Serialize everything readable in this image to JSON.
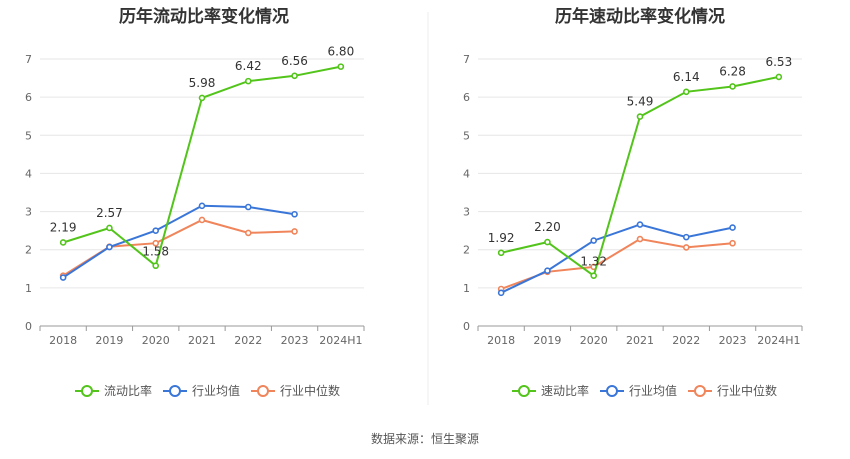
{
  "source_label": "数据来源：恒生聚源",
  "chart_data": [
    {
      "type": "line",
      "title": "历年流动比率变化情况",
      "categories": [
        "2018",
        "2019",
        "2020",
        "2021",
        "2022",
        "2023",
        "2024H1"
      ],
      "ylim": [
        0,
        7
      ],
      "yticks": [
        0,
        1,
        2,
        3,
        4,
        5,
        6,
        7
      ],
      "grid": true,
      "legend_position": "bottom",
      "series": [
        {
          "name": "流动比率",
          "color": "#52c41a",
          "values": [
            2.19,
            2.57,
            1.58,
            5.98,
            6.42,
            6.56,
            6.8
          ],
          "labels": [
            "2.19",
            "2.57",
            "1.58",
            "5.98",
            "6.42",
            "6.56",
            "6.80"
          ]
        },
        {
          "name": "行业均值",
          "color": "#3a76d8",
          "values": [
            1.27,
            2.07,
            2.5,
            3.15,
            3.12,
            2.93,
            null
          ]
        },
        {
          "name": "行业中位数",
          "color": "#f0845a",
          "values": [
            1.32,
            2.08,
            2.17,
            2.78,
            2.44,
            2.48,
            null
          ]
        }
      ]
    },
    {
      "type": "line",
      "title": "历年速动比率变化情况",
      "categories": [
        "2018",
        "2019",
        "2020",
        "2021",
        "2022",
        "2023",
        "2024H1"
      ],
      "ylim": [
        0,
        7
      ],
      "yticks": [
        0,
        1,
        2,
        3,
        4,
        5,
        6,
        7
      ],
      "grid": true,
      "legend_position": "bottom",
      "series": [
        {
          "name": "速动比率",
          "color": "#52c41a",
          "values": [
            1.92,
            2.2,
            1.32,
            5.49,
            6.14,
            6.28,
            6.53
          ],
          "labels": [
            "1.92",
            "2.20",
            "1.32",
            "5.49",
            "6.14",
            "6.28",
            "6.53"
          ]
        },
        {
          "name": "行业均值",
          "color": "#3a76d8",
          "values": [
            0.87,
            1.45,
            2.24,
            2.66,
            2.33,
            2.58,
            null
          ]
        },
        {
          "name": "行业中位数",
          "color": "#f0845a",
          "values": [
            0.97,
            1.42,
            1.55,
            2.28,
            2.06,
            2.17,
            null
          ]
        }
      ]
    }
  ]
}
